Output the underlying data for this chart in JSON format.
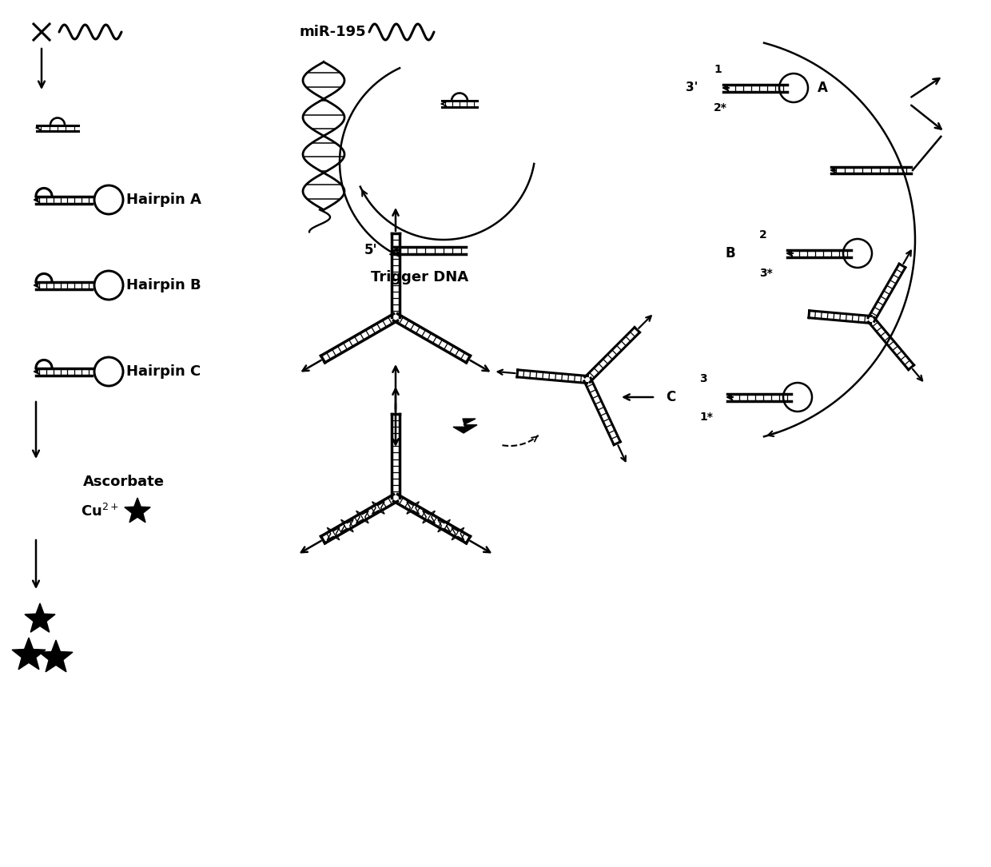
{
  "bg_color": "#ffffff",
  "labels": {
    "miR195": "miR-195",
    "hairpin_a": "Hairpin A",
    "hairpin_b": "Hairpin B",
    "hairpin_c": "Hairpin C",
    "trigger_dna": "Trigger DNA",
    "ascorbate": "Ascorbate",
    "cu2plus": "Cu$^{2+}$",
    "label_5p": "5'",
    "label_3p": "3'",
    "label_A": "A",
    "label_B": "B",
    "label_C": "C",
    "num1": "1",
    "num2": "2",
    "num3": "3",
    "num2star": "2*",
    "num3star": "3*",
    "num1star": "1*"
  }
}
